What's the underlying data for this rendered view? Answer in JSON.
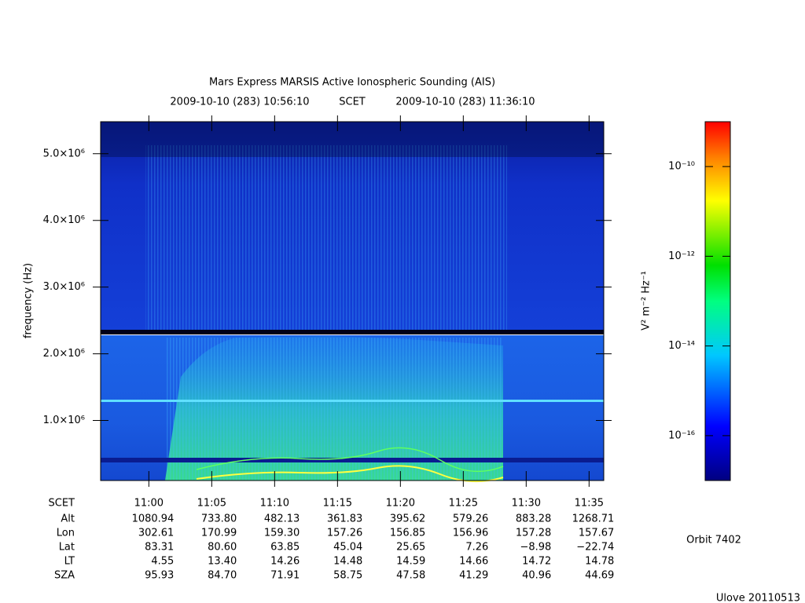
{
  "chart_data": {
    "type": "spectrogram",
    "title": "Mars Express MARSIS Active Ionospheric Sounding (AIS)",
    "time_start": "2009-10-10 (283) 10:56:10",
    "time_label": "SCET",
    "time_end": "2009-10-10 (283) 11:36:10",
    "ylabel": "frequency (Hz)",
    "ylim": [
      100000,
      5480000
    ],
    "yticks": [
      {
        "value": 1000000,
        "label": "1.0×10⁶"
      },
      {
        "value": 2000000,
        "label": "2.0×10⁶"
      },
      {
        "value": 3000000,
        "label": "3.0×10⁶"
      },
      {
        "value": 4000000,
        "label": "4.0×10⁶"
      },
      {
        "value": 5000000,
        "label": "5.0×10⁶"
      }
    ],
    "xlim": [
      39370,
      41770
    ],
    "xticks": [
      {
        "value": 39600,
        "label": "11:00"
      },
      {
        "value": 39900,
        "label": "11:05"
      },
      {
        "value": 40200,
        "label": "11:10"
      },
      {
        "value": 40500,
        "label": "11:15"
      },
      {
        "value": 40800,
        "label": "11:20"
      },
      {
        "value": 41100,
        "label": "11:25"
      },
      {
        "value": 41400,
        "label": "11:30"
      },
      {
        "value": 41700,
        "label": "11:35"
      }
    ],
    "ephemeris_header": "SCET",
    "ephemeris": [
      {
        "name": "Alt",
        "values": [
          "1080.94",
          "733.80",
          "482.13",
          "361.83",
          "395.62",
          "579.26",
          "883.28",
          "1268.71"
        ]
      },
      {
        "name": "Lon",
        "values": [
          "302.61",
          "170.99",
          "159.30",
          "157.26",
          "156.85",
          "156.96",
          "157.28",
          "157.67"
        ]
      },
      {
        "name": "Lat",
        "values": [
          "83.31",
          "80.60",
          "63.85",
          "45.04",
          "25.65",
          "7.26",
          "−8.98",
          "−22.74"
        ]
      },
      {
        "name": "LT",
        "values": [
          "4.55",
          "13.40",
          "14.26",
          "14.48",
          "14.59",
          "14.66",
          "14.72",
          "14.78"
        ]
      },
      {
        "name": "SZA",
        "values": [
          "95.93",
          "84.70",
          "71.91",
          "58.75",
          "47.58",
          "41.29",
          "40.96",
          "44.69"
        ]
      }
    ],
    "colorbar_label": "V² m⁻² Hz⁻¹",
    "clim": [
      1e-17,
      1e-09
    ],
    "log_scale": true,
    "cticks": [
      {
        "value": 1e-10,
        "label": "10⁻¹⁰"
      },
      {
        "value": 1e-12,
        "label": "10⁻¹²"
      },
      {
        "value": 1e-14,
        "label": "10⁻¹⁴"
      },
      {
        "value": 1e-16,
        "label": "10⁻¹⁶"
      }
    ],
    "orbit": "Orbit 7402",
    "footer": "Ulove 20110513"
  }
}
